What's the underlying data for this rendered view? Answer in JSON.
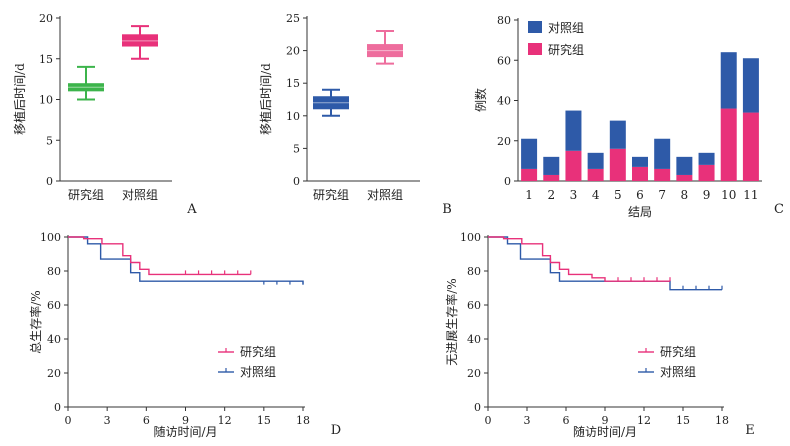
{
  "colors": {
    "green": "#3cb44b",
    "pink": "#e8317a",
    "light_pink": "#ee6d9d",
    "blue": "#2e5aa8",
    "axis": "#333333"
  },
  "chart_data": [
    {
      "panel": "A",
      "type": "box",
      "ylabel": "移植后时间/d",
      "ylim": [
        0,
        20
      ],
      "yticks": [
        0,
        5,
        10,
        15,
        20
      ],
      "categories": [
        "研究组",
        "对照组"
      ],
      "boxes": [
        {
          "min": 10,
          "q1": 11,
          "median": 11.5,
          "q3": 12,
          "max": 14,
          "color": "#3cb44b"
        },
        {
          "min": 15,
          "q1": 16.5,
          "median": 17.2,
          "q3": 18,
          "max": 19,
          "color": "#e8317a"
        }
      ]
    },
    {
      "panel": "B",
      "type": "box",
      "ylabel": "移植后时间/d",
      "ylim": [
        0,
        25
      ],
      "yticks": [
        0,
        5,
        10,
        15,
        20,
        25
      ],
      "categories": [
        "研究组",
        "对照组"
      ],
      "boxes": [
        {
          "min": 10,
          "q1": 11,
          "median": 12,
          "q3": 13,
          "max": 14,
          "color": "#2e5aa8"
        },
        {
          "min": 18,
          "q1": 19,
          "median": 20,
          "q3": 21,
          "max": 23,
          "color": "#ee6d9d"
        }
      ]
    },
    {
      "panel": "C",
      "type": "bar",
      "stacked": true,
      "xlabel": "结局",
      "ylabel": "例数",
      "ylim": [
        0,
        80
      ],
      "yticks": [
        0,
        20,
        40,
        60,
        80
      ],
      "categories": [
        "1",
        "2",
        "3",
        "4",
        "5",
        "6",
        "7",
        "8",
        "9",
        "10",
        "11"
      ],
      "legend": "top-left",
      "series": [
        {
          "name": "研究组",
          "color": "#e8317a",
          "values": [
            6,
            3,
            15,
            6,
            16,
            7,
            6,
            3,
            8,
            36,
            34
          ]
        },
        {
          "name": "对照组",
          "color": "#2e5aa8",
          "values": [
            15,
            9,
            20,
            8,
            14,
            5,
            15,
            9,
            6,
            28,
            27
          ]
        }
      ],
      "legend_order": [
        "对照组",
        "研究组"
      ]
    },
    {
      "panel": "D",
      "type": "line",
      "step": true,
      "xlabel": "随访时间/月",
      "ylabel": "总生存率/%",
      "xlim": [
        0,
        18
      ],
      "ylim": [
        0,
        100
      ],
      "xticks": [
        0,
        3,
        6,
        9,
        12,
        15,
        18
      ],
      "yticks": [
        0,
        20,
        40,
        60,
        80,
        100
      ],
      "legend": "bottom-center",
      "series": [
        {
          "name": "研究组",
          "color": "#e8317a",
          "x": [
            0,
            1.2,
            2.6,
            4.2,
            4.8,
            5.5,
            6.2,
            14
          ],
          "y": [
            100,
            99,
            96,
            89,
            85,
            81,
            78,
            78
          ],
          "censor": [
            9,
            10,
            11,
            12,
            13,
            14
          ]
        },
        {
          "name": "对照组",
          "color": "#2e5aa8",
          "x": [
            0,
            1.5,
            2.5,
            4.8,
            5.5,
            18
          ],
          "y": [
            100,
            96,
            87,
            79,
            74,
            72
          ],
          "censor": [
            15,
            16,
            17,
            18
          ]
        }
      ]
    },
    {
      "panel": "E",
      "type": "line",
      "step": true,
      "xlabel": "随访时间/月",
      "ylabel": "无进展生存率/%",
      "xlim": [
        0,
        18
      ],
      "ylim": [
        0,
        100
      ],
      "xticks": [
        0,
        3,
        6,
        9,
        12,
        15,
        18
      ],
      "yticks": [
        0,
        20,
        40,
        60,
        80,
        100
      ],
      "legend": "bottom-center",
      "series": [
        {
          "name": "研究组",
          "color": "#e8317a",
          "x": [
            0,
            1.2,
            2.6,
            4.2,
            4.8,
            5.5,
            6.2,
            8.0,
            9.0,
            14
          ],
          "y": [
            100,
            99,
            96,
            89,
            85,
            81,
            78,
            76,
            74,
            74
          ],
          "censor": [
            10,
            11,
            12,
            13,
            14
          ]
        },
        {
          "name": "对照组",
          "color": "#2e5aa8",
          "x": [
            0,
            1.5,
            2.5,
            4.8,
            5.5,
            14,
            18
          ],
          "y": [
            100,
            96,
            87,
            79,
            74,
            69,
            69
          ],
          "censor": [
            15,
            16,
            17,
            18
          ]
        }
      ]
    }
  ]
}
